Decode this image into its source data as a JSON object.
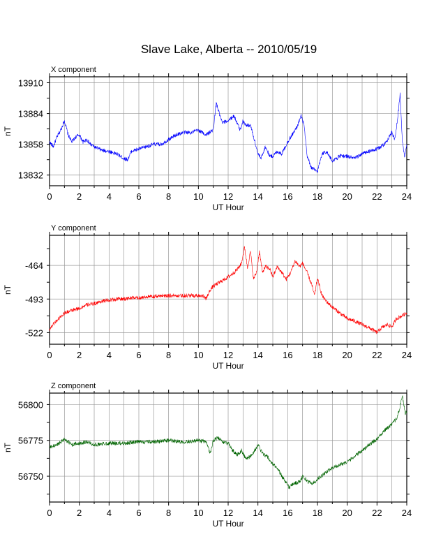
{
  "figure": {
    "title": "Slave Lake, Alberta -- 2010/05/19"
  },
  "chart_data": [
    {
      "type": "line",
      "panel_title": "X component",
      "xlabel": "UT Hour",
      "ylabel": "nT",
      "xlim": [
        0,
        24
      ],
      "ylim": [
        13823,
        13915
      ],
      "xticks": [
        0,
        2,
        4,
        6,
        8,
        10,
        12,
        14,
        16,
        18,
        20,
        22,
        24
      ],
      "yticks": [
        13832,
        13858,
        13884,
        13910
      ],
      "grid": true,
      "color": "#0000ff",
      "series": [
        {
          "x": [
            0,
            0.25,
            0.5,
            0.75,
            1.0,
            1.25,
            1.5,
            1.75,
            2.0,
            2.25,
            2.5,
            2.75,
            3.0,
            3.5,
            4.0,
            4.5,
            5.0,
            5.25,
            5.5,
            6.0,
            6.5,
            7.0,
            7.5,
            8.0,
            8.5,
            9.0,
            9.5,
            10.0,
            10.5,
            11.0,
            11.2,
            11.4,
            11.6,
            12.0,
            12.4,
            12.8,
            13.0,
            13.2,
            13.5,
            13.8,
            14.0,
            14.2,
            14.5,
            14.8,
            15.0,
            15.3,
            15.6,
            16.0,
            16.3,
            16.6,
            16.9,
            17.1,
            17.3,
            17.6,
            18.0,
            18.3,
            18.6,
            19.0,
            19.5,
            20.0,
            20.5,
            21.0,
            21.5,
            22.0,
            22.5,
            23.0,
            23.2,
            23.4,
            23.55,
            23.7,
            23.85,
            24.0
          ],
          "y": [
            13860,
            13856,
            13864,
            13870,
            13878,
            13866,
            13860,
            13864,
            13866,
            13860,
            13862,
            13858,
            13856,
            13853,
            13852,
            13850,
            13846,
            13845,
            13852,
            13854,
            13856,
            13858,
            13858,
            13862,
            13866,
            13868,
            13868,
            13870,
            13866,
            13870,
            13893,
            13884,
            13876,
            13878,
            13882,
            13870,
            13878,
            13874,
            13874,
            13860,
            13850,
            13846,
            13856,
            13848,
            13848,
            13852,
            13850,
            13860,
            13866,
            13872,
            13882,
            13874,
            13848,
            13838,
            13835,
            13850,
            13852,
            13844,
            13848,
            13848,
            13846,
            13850,
            13852,
            13854,
            13858,
            13868,
            13862,
            13882,
            13900,
            13860,
            13848,
            13858
          ]
        }
      ]
    },
    {
      "type": "line",
      "panel_title": "Y component",
      "xlabel": "UT Hour",
      "ylabel": "nT",
      "xlim": [
        0,
        24
      ],
      "ylim": [
        -532,
        -438
      ],
      "xticks": [
        0,
        2,
        4,
        6,
        8,
        10,
        12,
        14,
        16,
        18,
        20,
        22,
        24
      ],
      "yticks": [
        -464,
        -493,
        -522
      ],
      "grid": true,
      "color": "#ff0000",
      "series": [
        {
          "x": [
            0,
            0.3,
            0.6,
            1.0,
            1.5,
            2.0,
            2.5,
            3.0,
            3.5,
            4.0,
            4.5,
            5.0,
            5.5,
            6.0,
            6.5,
            7.0,
            7.5,
            8.0,
            8.5,
            9.0,
            9.5,
            10.0,
            10.3,
            10.5,
            10.8,
            11.0,
            11.5,
            12.0,
            12.4,
            12.7,
            12.9,
            13.1,
            13.3,
            13.5,
            13.7,
            13.9,
            14.1,
            14.3,
            14.5,
            14.8,
            15.0,
            15.3,
            15.6,
            15.9,
            16.2,
            16.5,
            16.8,
            17.0,
            17.3,
            17.6,
            17.8,
            18.0,
            18.3,
            18.6,
            19.0,
            19.5,
            20.0,
            20.5,
            21.0,
            21.5,
            22.0,
            22.3,
            22.7,
            23.0,
            23.3,
            23.6,
            24.0
          ],
          "y": [
            -519,
            -514,
            -510,
            -505,
            -503,
            -501,
            -498,
            -497,
            -495,
            -494,
            -493,
            -493,
            -492,
            -492,
            -491,
            -491,
            -490,
            -490,
            -490,
            -490,
            -490,
            -490,
            -490,
            -493,
            -485,
            -482,
            -478,
            -474,
            -470,
            -466,
            -462,
            -448,
            -466,
            -452,
            -476,
            -470,
            -452,
            -470,
            -465,
            -467,
            -474,
            -465,
            -470,
            -476,
            -470,
            -460,
            -465,
            -462,
            -470,
            -480,
            -490,
            -475,
            -490,
            -495,
            -500,
            -505,
            -510,
            -512,
            -515,
            -518,
            -522,
            -518,
            -515,
            -517,
            -510,
            -508,
            -505
          ]
        }
      ]
    },
    {
      "type": "line",
      "panel_title": "Z component",
      "xlabel": "UT Hour",
      "ylabel": "nT",
      "xlim": [
        0,
        24
      ],
      "ylim": [
        56732,
        56808
      ],
      "xticks": [
        0,
        2,
        4,
        6,
        8,
        10,
        12,
        14,
        16,
        18,
        20,
        22,
        24
      ],
      "yticks": [
        56750,
        56775,
        56800
      ],
      "grid": true,
      "color": "#006400",
      "series": [
        {
          "x": [
            0,
            0.5,
            1.0,
            1.5,
            2.0,
            2.5,
            3.0,
            4.0,
            5.0,
            6.0,
            7.0,
            8.0,
            9.0,
            10.0,
            10.5,
            10.8,
            11.0,
            11.3,
            11.6,
            12.0,
            12.3,
            12.6,
            12.9,
            13.2,
            13.5,
            13.8,
            14.0,
            14.3,
            14.6,
            15.0,
            15.3,
            15.6,
            15.9,
            16.1,
            16.4,
            16.8,
            17.0,
            17.4,
            17.7,
            18.0,
            18.5,
            19.0,
            19.5,
            20.0,
            20.5,
            21.0,
            21.5,
            22.0,
            22.5,
            23.0,
            23.3,
            23.5,
            23.7,
            23.9,
            24.0
          ],
          "y": [
            56770,
            56772,
            56776,
            56772,
            56773,
            56774,
            56772,
            56773,
            56773,
            56774,
            56774,
            56775,
            56774,
            56775,
            56774,
            56766,
            56775,
            56777,
            56774,
            56773,
            56768,
            56765,
            56768,
            56762,
            56764,
            56768,
            56772,
            56766,
            56764,
            56758,
            56756,
            56750,
            56746,
            56742,
            56745,
            56746,
            56750,
            56746,
            56745,
            56748,
            56752,
            56756,
            56758,
            56760,
            56764,
            56768,
            56772,
            56776,
            56782,
            56786,
            56790,
            56796,
            56806,
            56794,
            56795
          ]
        }
      ]
    }
  ]
}
